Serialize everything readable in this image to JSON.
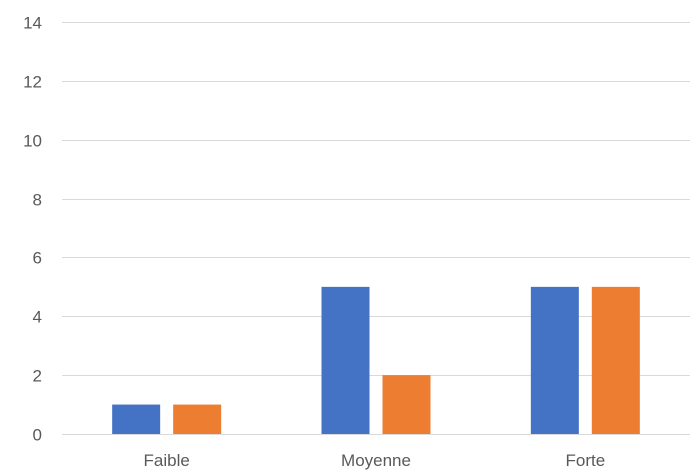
{
  "chart_data": {
    "type": "bar",
    "title": "",
    "xlabel": "",
    "ylabel": "",
    "categories": [
      "Faible",
      "Moyenne",
      "Forte"
    ],
    "series": [
      {
        "color": "#4472C4",
        "values": [
          1,
          5,
          5
        ]
      },
      {
        "color": "#ED7D31",
        "values": [
          1,
          2,
          5
        ]
      }
    ],
    "ylim": [
      0,
      14
    ],
    "yticks": [
      0,
      2,
      4,
      6,
      8,
      10,
      12,
      14
    ],
    "grid": true,
    "legend": "none"
  }
}
